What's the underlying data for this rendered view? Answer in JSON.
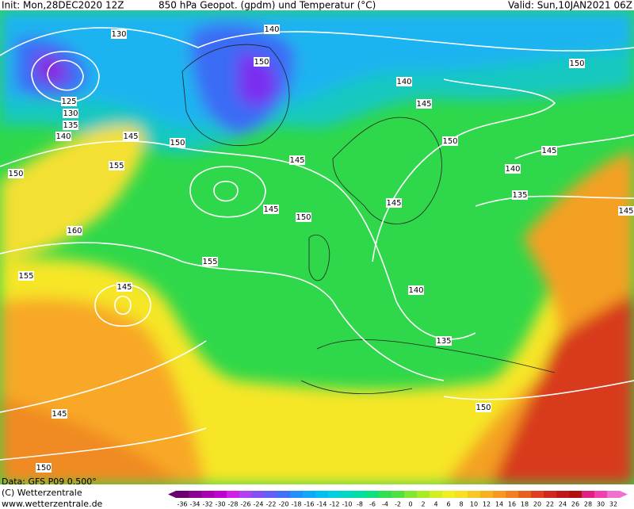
{
  "header": {
    "init": "Init: Mon,28DEC2020 12Z",
    "title": "850 hPa Geopot. (gpdm) und Temperatur (°C)",
    "valid": "Valid: Sun,10JAN2021 06Z"
  },
  "footer": {
    "source": "Data: GFS P09 0.500°",
    "copyright": "(C) Wetterzentrale",
    "website": "www.wetterzentrale.de"
  },
  "colorbar": {
    "labels": [
      -36,
      -34,
      -32,
      -30,
      -28,
      -26,
      -24,
      -22,
      -20,
      -18,
      -16,
      -14,
      -12,
      -10,
      -8,
      -6,
      -4,
      -2,
      0,
      2,
      4,
      6,
      8,
      10,
      12,
      14,
      16,
      18,
      20,
      22,
      24,
      26,
      28,
      30,
      32
    ],
    "colors": [
      "#6a0070",
      "#8a0090",
      "#a800b0",
      "#c000d0",
      "#d020e8",
      "#b040f0",
      "#8050f5",
      "#6060f8",
      "#4070fa",
      "#2090fa",
      "#10a8f8",
      "#00c0f0",
      "#00d0e0",
      "#00d8c0",
      "#00e0a0",
      "#10e080",
      "#30e050",
      "#50e040",
      "#80e830",
      "#a8ec28",
      "#d0f020",
      "#f0f020",
      "#f8e020",
      "#f8c820",
      "#f8b020",
      "#f89820",
      "#f08020",
      "#e86020",
      "#e04020",
      "#d02820",
      "#c01818",
      "#b01010",
      "#e02080",
      "#f040b0",
      "#f070d0"
    ]
  },
  "contour_labels": [
    "130",
    "140",
    "150",
    "140",
    "150",
    "145",
    "125",
    "130",
    "135",
    "140",
    "145",
    "150",
    "150",
    "145",
    "155",
    "150",
    "145",
    "140",
    "135",
    "145",
    "145",
    "150",
    "145",
    "160",
    "155",
    "155",
    "145",
    "140",
    "135",
    "150",
    "145",
    "150"
  ]
}
